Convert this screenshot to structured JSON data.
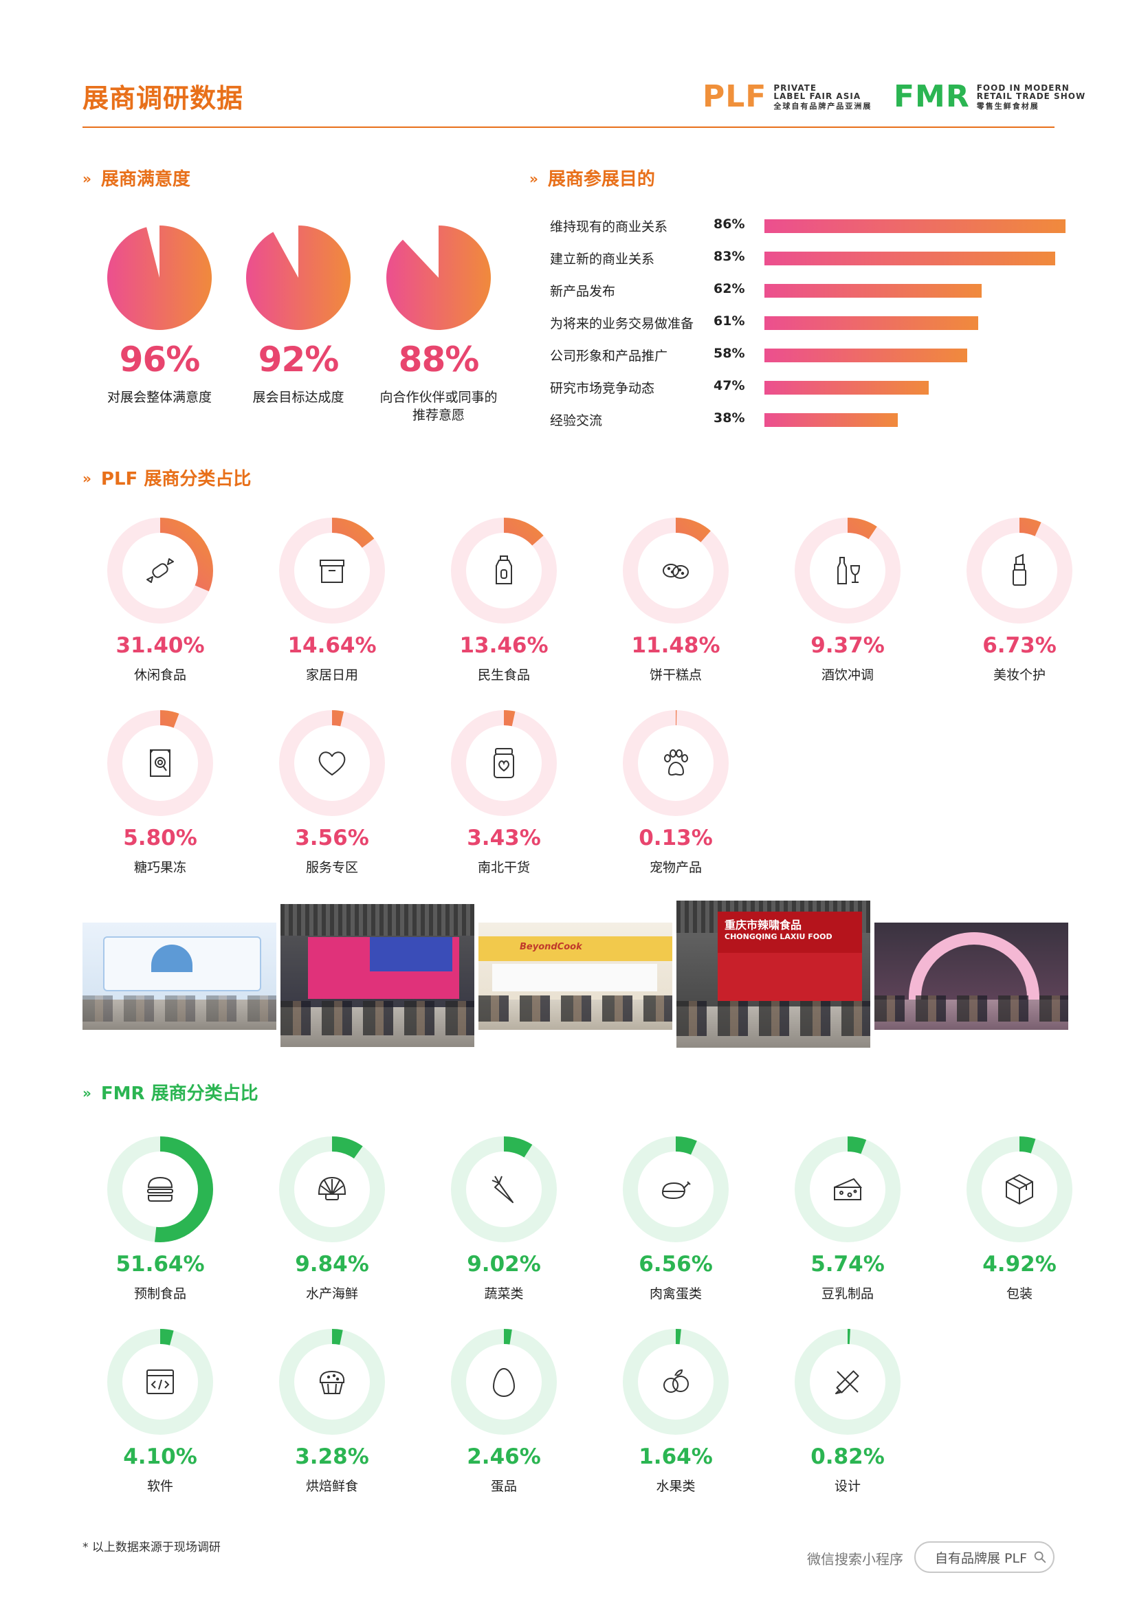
{
  "header": {
    "title": "展商调研数据",
    "plf_logo": {
      "mark": "PLF",
      "line1": "PRIVATE",
      "line2": "LABEL FAIR ASIA",
      "line3": "全球自有品牌产品亚洲展"
    },
    "fmr_logo": {
      "mark": "FMR",
      "line1": "FOOD IN MODERN",
      "line2": "RETAIL TRADE SHOW",
      "line3": "零售生鲜食材展"
    }
  },
  "satisfaction": {
    "title": "展商满意度",
    "items": [
      {
        "value": "96%",
        "fraction": 0.96,
        "label": "对展会整体满意度"
      },
      {
        "value": "92%",
        "fraction": 0.92,
        "label": "展会目标达成度"
      },
      {
        "value": "88%",
        "fraction": 0.88,
        "label": "向合作伙伴或同事的推荐意愿"
      }
    ]
  },
  "purpose": {
    "title": "展商参展目的",
    "items": [
      {
        "label": "维持现有的商业关系",
        "value": "86%",
        "pct": 86
      },
      {
        "label": "建立新的商业关系",
        "value": "83%",
        "pct": 83
      },
      {
        "label": "新产品发布",
        "value": "62%",
        "pct": 62
      },
      {
        "label": "为将来的业务交易做准备",
        "value": "61%",
        "pct": 61
      },
      {
        "label": "公司形象和产品推广",
        "value": "58%",
        "pct": 58
      },
      {
        "label": "研究市场竞争动态",
        "value": "47%",
        "pct": 47
      },
      {
        "label": "经验交流",
        "value": "38%",
        "pct": 38
      }
    ]
  },
  "plf_categories": {
    "title": "PLF 展商分类占比",
    "items": [
      {
        "value": "31.40%",
        "pct": 31.4,
        "label": "休闲食品",
        "icon": "candy-icon"
      },
      {
        "value": "14.64%",
        "pct": 14.64,
        "label": "家居日用",
        "icon": "box-icon"
      },
      {
        "value": "13.46%",
        "pct": 13.46,
        "label": "民生食品",
        "icon": "bottle-icon"
      },
      {
        "value": "11.48%",
        "pct": 11.48,
        "label": "饼干糕点",
        "icon": "cookie-icon"
      },
      {
        "value": "9.37%",
        "pct": 9.37,
        "label": "酒饮冲调",
        "icon": "wine-icon"
      },
      {
        "value": "6.73%",
        "pct": 6.73,
        "label": "美妆个护",
        "icon": "lipstick-icon"
      },
      {
        "value": "5.80%",
        "pct": 5.8,
        "label": "糖巧果冻",
        "icon": "candy-bag-icon"
      },
      {
        "value": "3.56%",
        "pct": 3.56,
        "label": "服务专区",
        "icon": "heart-icon"
      },
      {
        "value": "3.43%",
        "pct": 3.43,
        "label": "南北干货",
        "icon": "jar-icon"
      },
      {
        "value": "0.13%",
        "pct": 0.13,
        "label": "宠物产品",
        "icon": "paw-icon"
      }
    ]
  },
  "fmr_categories": {
    "title": "FMR 展商分类占比",
    "items": [
      {
        "value": "51.64%",
        "pct": 51.64,
        "label": "预制食品",
        "icon": "burger-icon"
      },
      {
        "value": "9.84%",
        "pct": 9.84,
        "label": "水产海鲜",
        "icon": "shell-icon"
      },
      {
        "value": "9.02%",
        "pct": 9.02,
        "label": "蔬菜类",
        "icon": "carrot-icon"
      },
      {
        "value": "6.56%",
        "pct": 6.56,
        "label": "肉禽蛋类",
        "icon": "chicken-icon"
      },
      {
        "value": "5.74%",
        "pct": 5.74,
        "label": "豆乳制品",
        "icon": "cheese-icon"
      },
      {
        "value": "4.92%",
        "pct": 4.92,
        "label": "包装",
        "icon": "package-icon"
      },
      {
        "value": "4.10%",
        "pct": 4.1,
        "label": "软件",
        "icon": "code-icon"
      },
      {
        "value": "3.28%",
        "pct": 3.28,
        "label": "烘焙鲜食",
        "icon": "muffin-icon"
      },
      {
        "value": "2.46%",
        "pct": 2.46,
        "label": "蛋品",
        "icon": "egg-icon"
      },
      {
        "value": "1.64%",
        "pct": 1.64,
        "label": "水果类",
        "icon": "fruit-icon"
      },
      {
        "value": "0.82%",
        "pct": 0.82,
        "label": "设计",
        "icon": "design-icon"
      }
    ]
  },
  "photos": {
    "captions": [
      "CHONGQING LAXIU FOOD",
      "重庆市辣啸食品",
      "BeyondCook"
    ]
  },
  "colors": {
    "orange": "#e8701a",
    "pink": "#e8456e",
    "gradient_start": "#ec4f8f",
    "gradient_end": "#f08a3c",
    "green": "#2bb552",
    "pink_track": "#fde8ec",
    "green_track": "#e4f6ea"
  },
  "footer": {
    "note": "* 以上数据来源于现场调研",
    "mini_program": "微信搜索小程序",
    "search_text": "自有品牌展 PLF"
  }
}
